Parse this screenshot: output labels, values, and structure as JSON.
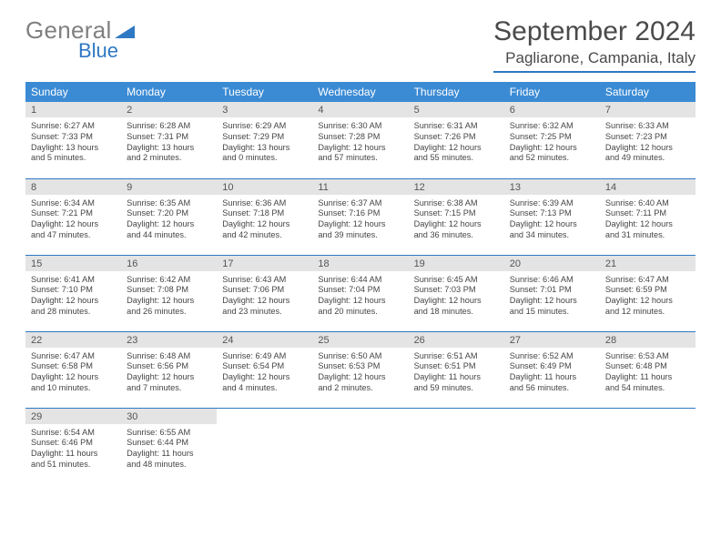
{
  "logo": {
    "word1": "General",
    "word2": "Blue"
  },
  "title": "September 2024",
  "location": "Pagliarone, Campania, Italy",
  "header_color": "#3b8bd4",
  "accent_color": "#2f78c4",
  "day_bg": "#e4e4e4",
  "weekdays": [
    "Sunday",
    "Monday",
    "Tuesday",
    "Wednesday",
    "Thursday",
    "Friday",
    "Saturday"
  ],
  "days": [
    {
      "n": "1",
      "sr": "Sunrise: 6:27 AM",
      "ss": "Sunset: 7:33 PM",
      "d1": "Daylight: 13 hours",
      "d2": "and 5 minutes."
    },
    {
      "n": "2",
      "sr": "Sunrise: 6:28 AM",
      "ss": "Sunset: 7:31 PM",
      "d1": "Daylight: 13 hours",
      "d2": "and 2 minutes."
    },
    {
      "n": "3",
      "sr": "Sunrise: 6:29 AM",
      "ss": "Sunset: 7:29 PM",
      "d1": "Daylight: 13 hours",
      "d2": "and 0 minutes."
    },
    {
      "n": "4",
      "sr": "Sunrise: 6:30 AM",
      "ss": "Sunset: 7:28 PM",
      "d1": "Daylight: 12 hours",
      "d2": "and 57 minutes."
    },
    {
      "n": "5",
      "sr": "Sunrise: 6:31 AM",
      "ss": "Sunset: 7:26 PM",
      "d1": "Daylight: 12 hours",
      "d2": "and 55 minutes."
    },
    {
      "n": "6",
      "sr": "Sunrise: 6:32 AM",
      "ss": "Sunset: 7:25 PM",
      "d1": "Daylight: 12 hours",
      "d2": "and 52 minutes."
    },
    {
      "n": "7",
      "sr": "Sunrise: 6:33 AM",
      "ss": "Sunset: 7:23 PM",
      "d1": "Daylight: 12 hours",
      "d2": "and 49 minutes."
    },
    {
      "n": "8",
      "sr": "Sunrise: 6:34 AM",
      "ss": "Sunset: 7:21 PM",
      "d1": "Daylight: 12 hours",
      "d2": "and 47 minutes."
    },
    {
      "n": "9",
      "sr": "Sunrise: 6:35 AM",
      "ss": "Sunset: 7:20 PM",
      "d1": "Daylight: 12 hours",
      "d2": "and 44 minutes."
    },
    {
      "n": "10",
      "sr": "Sunrise: 6:36 AM",
      "ss": "Sunset: 7:18 PM",
      "d1": "Daylight: 12 hours",
      "d2": "and 42 minutes."
    },
    {
      "n": "11",
      "sr": "Sunrise: 6:37 AM",
      "ss": "Sunset: 7:16 PM",
      "d1": "Daylight: 12 hours",
      "d2": "and 39 minutes."
    },
    {
      "n": "12",
      "sr": "Sunrise: 6:38 AM",
      "ss": "Sunset: 7:15 PM",
      "d1": "Daylight: 12 hours",
      "d2": "and 36 minutes."
    },
    {
      "n": "13",
      "sr": "Sunrise: 6:39 AM",
      "ss": "Sunset: 7:13 PM",
      "d1": "Daylight: 12 hours",
      "d2": "and 34 minutes."
    },
    {
      "n": "14",
      "sr": "Sunrise: 6:40 AM",
      "ss": "Sunset: 7:11 PM",
      "d1": "Daylight: 12 hours",
      "d2": "and 31 minutes."
    },
    {
      "n": "15",
      "sr": "Sunrise: 6:41 AM",
      "ss": "Sunset: 7:10 PM",
      "d1": "Daylight: 12 hours",
      "d2": "and 28 minutes."
    },
    {
      "n": "16",
      "sr": "Sunrise: 6:42 AM",
      "ss": "Sunset: 7:08 PM",
      "d1": "Daylight: 12 hours",
      "d2": "and 26 minutes."
    },
    {
      "n": "17",
      "sr": "Sunrise: 6:43 AM",
      "ss": "Sunset: 7:06 PM",
      "d1": "Daylight: 12 hours",
      "d2": "and 23 minutes."
    },
    {
      "n": "18",
      "sr": "Sunrise: 6:44 AM",
      "ss": "Sunset: 7:04 PM",
      "d1": "Daylight: 12 hours",
      "d2": "and 20 minutes."
    },
    {
      "n": "19",
      "sr": "Sunrise: 6:45 AM",
      "ss": "Sunset: 7:03 PM",
      "d1": "Daylight: 12 hours",
      "d2": "and 18 minutes."
    },
    {
      "n": "20",
      "sr": "Sunrise: 6:46 AM",
      "ss": "Sunset: 7:01 PM",
      "d1": "Daylight: 12 hours",
      "d2": "and 15 minutes."
    },
    {
      "n": "21",
      "sr": "Sunrise: 6:47 AM",
      "ss": "Sunset: 6:59 PM",
      "d1": "Daylight: 12 hours",
      "d2": "and 12 minutes."
    },
    {
      "n": "22",
      "sr": "Sunrise: 6:47 AM",
      "ss": "Sunset: 6:58 PM",
      "d1": "Daylight: 12 hours",
      "d2": "and 10 minutes."
    },
    {
      "n": "23",
      "sr": "Sunrise: 6:48 AM",
      "ss": "Sunset: 6:56 PM",
      "d1": "Daylight: 12 hours",
      "d2": "and 7 minutes."
    },
    {
      "n": "24",
      "sr": "Sunrise: 6:49 AM",
      "ss": "Sunset: 6:54 PM",
      "d1": "Daylight: 12 hours",
      "d2": "and 4 minutes."
    },
    {
      "n": "25",
      "sr": "Sunrise: 6:50 AM",
      "ss": "Sunset: 6:53 PM",
      "d1": "Daylight: 12 hours",
      "d2": "and 2 minutes."
    },
    {
      "n": "26",
      "sr": "Sunrise: 6:51 AM",
      "ss": "Sunset: 6:51 PM",
      "d1": "Daylight: 11 hours",
      "d2": "and 59 minutes."
    },
    {
      "n": "27",
      "sr": "Sunrise: 6:52 AM",
      "ss": "Sunset: 6:49 PM",
      "d1": "Daylight: 11 hours",
      "d2": "and 56 minutes."
    },
    {
      "n": "28",
      "sr": "Sunrise: 6:53 AM",
      "ss": "Sunset: 6:48 PM",
      "d1": "Daylight: 11 hours",
      "d2": "and 54 minutes."
    },
    {
      "n": "29",
      "sr": "Sunrise: 6:54 AM",
      "ss": "Sunset: 6:46 PM",
      "d1": "Daylight: 11 hours",
      "d2": "and 51 minutes."
    },
    {
      "n": "30",
      "sr": "Sunrise: 6:55 AM",
      "ss": "Sunset: 6:44 PM",
      "d1": "Daylight: 11 hours",
      "d2": "and 48 minutes."
    }
  ]
}
